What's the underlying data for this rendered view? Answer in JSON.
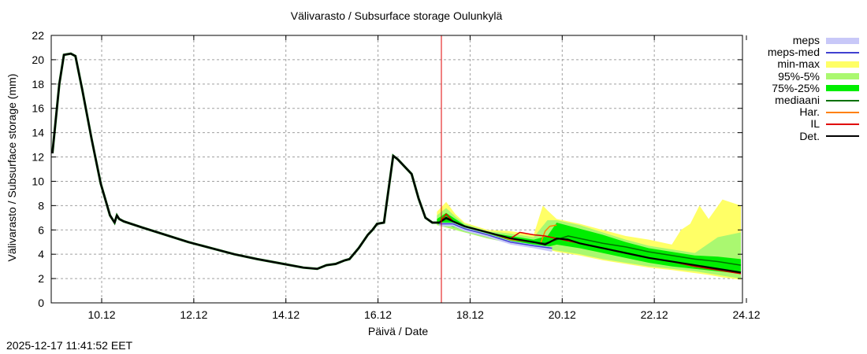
{
  "title": "Välivarasto / Subsurface storage  Oulunkylä",
  "timestamp": "2025-12-17 11:41:52 EET",
  "chart_data": {
    "type": "line",
    "title": "Välivarasto / Subsurface storage  Oulunkylä",
    "xlabel": "Päivä / Date",
    "ylabel": "Välivarasto / Subsurface storage (mm)",
    "ylim": [
      0,
      22
    ],
    "yticks": [
      0,
      2,
      4,
      6,
      8,
      10,
      12,
      14,
      16,
      18,
      20,
      22
    ],
    "xlim": [
      "9.12",
      "24.12"
    ],
    "xticks": [
      "10.12",
      "12.12",
      "14.12",
      "16.12",
      "18.12",
      "20.12",
      "22.12",
      "24.12"
    ],
    "grid": true,
    "legend_position": "right",
    "forecast_start": "17.12",
    "legend": [
      {
        "label": "meps",
        "color": "#c8c8f8",
        "kind": "band"
      },
      {
        "label": "meps-med",
        "color": "#4040d0",
        "kind": "line"
      },
      {
        "label": "min-max",
        "color": "#ffff66",
        "kind": "band"
      },
      {
        "label": "95%-5%",
        "color": "#aaf870",
        "kind": "band"
      },
      {
        "label": "75%-25%",
        "color": "#00ee00",
        "kind": "band"
      },
      {
        "label": "mediaani",
        "color": "#007000",
        "kind": "line"
      },
      {
        "label": "Har.",
        "color": "#ff8000",
        "kind": "line"
      },
      {
        "label": "IL",
        "color": "#e00000",
        "kind": "line"
      },
      {
        "label": "Det.",
        "color": "#000000",
        "kind": "line"
      }
    ],
    "series": [
      {
        "name": "Det. (observed/history)",
        "x": [
          9.05,
          9.2,
          9.3,
          9.45,
          9.55,
          9.7,
          9.9,
          10.1,
          10.3,
          10.4,
          10.45,
          10.5,
          10.6,
          11.0,
          11.5,
          12.0,
          12.5,
          13.0,
          13.5,
          14.0,
          14.5,
          14.8,
          15.0,
          15.2,
          15.4,
          15.5,
          15.7,
          15.9,
          16.0,
          16.1,
          16.25,
          16.45,
          16.55,
          16.7,
          16.85,
          17.0,
          17.15,
          17.3,
          17.45
        ],
        "values": [
          12.3,
          18.0,
          20.4,
          20.5,
          20.3,
          17.5,
          13.5,
          9.8,
          7.2,
          6.6,
          7.2,
          6.9,
          6.7,
          6.2,
          5.6,
          5.0,
          4.5,
          4.0,
          3.6,
          3.25,
          2.9,
          2.8,
          3.1,
          3.2,
          3.5,
          3.6,
          4.5,
          5.6,
          6.0,
          6.5,
          6.6,
          12.1,
          11.8,
          11.2,
          10.6,
          8.6,
          7.0,
          6.6,
          6.6
        ]
      },
      {
        "name": "Det.",
        "x": [
          17.45,
          17.6,
          17.75,
          18.0,
          18.5,
          19.0,
          19.5,
          19.75,
          19.85,
          20.0,
          20.25,
          20.5,
          21.0,
          21.5,
          22.0,
          22.5,
          23.0,
          23.5,
          24.0
        ],
        "values": [
          6.6,
          7.0,
          6.7,
          6.3,
          5.8,
          5.3,
          5.0,
          4.8,
          5.0,
          5.3,
          5.2,
          4.9,
          4.5,
          4.1,
          3.7,
          3.4,
          3.1,
          2.8,
          2.5
        ]
      },
      {
        "name": "IL",
        "x": [
          17.45,
          17.6,
          17.75,
          18.0,
          18.5,
          19.0,
          19.2,
          19.5,
          19.75,
          20.0,
          20.5,
          21.0,
          21.5,
          22.0,
          22.5,
          23.0,
          23.5,
          24.0
        ],
        "values": [
          6.6,
          7.3,
          6.7,
          6.3,
          5.8,
          5.3,
          5.8,
          5.6,
          5.5,
          5.3,
          4.9,
          4.5,
          4.1,
          3.7,
          3.4,
          3.0,
          2.7,
          2.4
        ]
      },
      {
        "name": "Har.",
        "x": [
          17.45,
          17.6,
          17.75,
          18.0,
          18.5,
          19.0,
          19.5,
          19.65,
          19.75,
          19.85,
          20.0
        ],
        "values": [
          6.6,
          7.0,
          6.7,
          6.3,
          5.8,
          5.2,
          5.0,
          4.9,
          5.9,
          6.3,
          6.4
        ]
      },
      {
        "name": "mediaani",
        "x": [
          17.45,
          17.6,
          17.75,
          18.0,
          18.5,
          19.0,
          19.5,
          19.75,
          20.0,
          20.25,
          20.5,
          21.0,
          21.5,
          22.0,
          22.5,
          23.0,
          23.5,
          24.0
        ],
        "values": [
          6.6,
          6.9,
          6.7,
          6.3,
          5.8,
          5.3,
          5.0,
          4.9,
          5.2,
          5.5,
          5.3,
          4.9,
          4.6,
          4.2,
          3.9,
          3.6,
          3.4,
          3.1
        ]
      },
      {
        "name": "meps-med",
        "x": [
          17.45,
          17.75,
          18.0,
          18.5,
          19.0,
          19.5,
          19.9
        ],
        "values": [
          6.5,
          6.5,
          6.1,
          5.6,
          5.0,
          4.7,
          4.5
        ]
      }
    ],
    "bands": [
      {
        "name": "min-max",
        "x": [
          17.4,
          17.6,
          17.8,
          18.0,
          18.5,
          19.0,
          19.5,
          19.7,
          19.8,
          20.0,
          20.5,
          21.0,
          21.5,
          22.0,
          22.5,
          22.7,
          22.9,
          23.1,
          23.3,
          23.6,
          24.0
        ],
        "upper": [
          7.5,
          8.3,
          7.3,
          6.6,
          6.0,
          5.9,
          5.6,
          8.0,
          7.6,
          6.9,
          6.5,
          6.0,
          5.5,
          5.2,
          4.8,
          6.0,
          6.5,
          8.0,
          6.9,
          8.5,
          8.0
        ],
        "lower": [
          6.4,
          6.2,
          6.0,
          5.8,
          5.4,
          5.0,
          4.7,
          4.6,
          4.4,
          4.2,
          3.9,
          3.5,
          3.2,
          2.9,
          2.7,
          2.6,
          2.5,
          2.4,
          2.3,
          2.1,
          1.9
        ]
      },
      {
        "name": "95%-5%",
        "x": [
          17.4,
          17.6,
          17.8,
          18.0,
          18.5,
          19.0,
          19.5,
          19.8,
          20.0,
          20.5,
          21.0,
          21.5,
          22.0,
          22.5,
          23.0,
          23.5,
          24.0
        ],
        "upper": [
          7.2,
          7.8,
          7.1,
          6.5,
          5.9,
          5.7,
          5.4,
          6.8,
          6.8,
          6.4,
          5.8,
          5.2,
          4.7,
          4.4,
          4.1,
          5.4,
          5.8
        ],
        "lower": [
          6.4,
          6.2,
          6.0,
          5.8,
          5.3,
          4.9,
          4.6,
          4.4,
          4.3,
          4.0,
          3.6,
          3.3,
          3.0,
          2.8,
          2.6,
          2.3,
          2.0
        ]
      },
      {
        "name": "75%-25%",
        "x": [
          17.4,
          17.6,
          17.8,
          18.0,
          18.5,
          19.0,
          19.5,
          19.8,
          20.0,
          20.5,
          21.0,
          21.5,
          22.0,
          22.5,
          23.0,
          23.5,
          24.0
        ],
        "upper": [
          6.9,
          7.4,
          6.9,
          6.4,
          5.8,
          5.5,
          5.2,
          5.5,
          6.6,
          6.1,
          5.6,
          5.0,
          4.5,
          4.2,
          3.9,
          3.8,
          3.6
        ],
        "lower": [
          6.5,
          6.4,
          6.2,
          5.9,
          5.4,
          5.0,
          4.7,
          4.6,
          4.8,
          4.5,
          4.1,
          3.7,
          3.3,
          3.0,
          2.8,
          2.6,
          2.4
        ]
      },
      {
        "name": "meps",
        "x": [
          17.45,
          17.75,
          18.0,
          18.5,
          19.0,
          19.5,
          19.9,
          19.9
        ],
        "upper": [
          6.6,
          6.6,
          6.2,
          5.7,
          5.1,
          4.8,
          4.6,
          4.6
        ],
        "lower": [
          6.3,
          6.3,
          5.9,
          5.4,
          4.8,
          4.5,
          4.2,
          4.2
        ]
      }
    ]
  }
}
